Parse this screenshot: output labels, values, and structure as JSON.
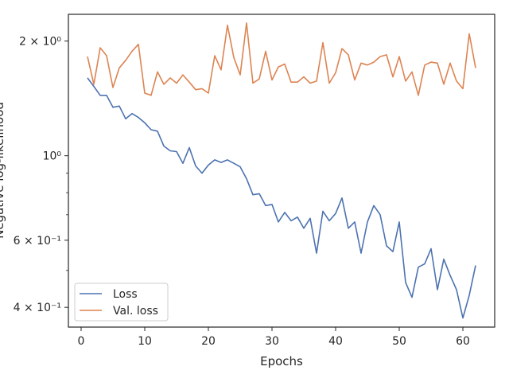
{
  "chart_data": {
    "type": "line",
    "title": "",
    "xlabel": "Epochs",
    "ylabel": "Negative log-likelihood",
    "yscale": "log",
    "xlim": [
      -2,
      65
    ],
    "ylim": [
      0.355,
      2.35
    ],
    "grid": false,
    "legend_position": "lower-left",
    "x_ticks": [
      0,
      10,
      20,
      30,
      40,
      50,
      60
    ],
    "x_tick_labels": [
      "0",
      "10",
      "20",
      "30",
      "40",
      "50",
      "60"
    ],
    "y_ticks": [
      0.4,
      0.6,
      1.0,
      2.0
    ],
    "y_tick_labels": [
      "4 × 10⁻¹",
      "6 × 10⁻¹",
      "10⁰",
      "2 × 10⁰"
    ],
    "y_minor_ticks": [
      0.5,
      0.7,
      0.8,
      0.9
    ],
    "x": [
      1,
      2,
      3,
      4,
      5,
      6,
      7,
      8,
      9,
      10,
      11,
      12,
      13,
      14,
      15,
      16,
      17,
      18,
      19,
      20,
      21,
      22,
      23,
      24,
      25,
      26,
      27,
      28,
      29,
      30,
      31,
      32,
      33,
      34,
      35,
      36,
      37,
      38,
      39,
      40,
      41,
      42,
      43,
      44,
      45,
      46,
      47,
      48,
      49,
      50,
      51,
      52,
      53,
      54,
      55,
      56,
      57,
      58,
      59,
      60,
      61,
      62
    ],
    "series": [
      {
        "name": "Loss",
        "color": "#4c72b0",
        "values": [
          1.6,
          1.52,
          1.44,
          1.44,
          1.34,
          1.35,
          1.25,
          1.29,
          1.26,
          1.22,
          1.17,
          1.16,
          1.06,
          1.03,
          1.025,
          0.955,
          1.05,
          0.94,
          0.9,
          0.945,
          0.975,
          0.96,
          0.975,
          0.955,
          0.935,
          0.87,
          0.79,
          0.795,
          0.74,
          0.745,
          0.67,
          0.71,
          0.675,
          0.69,
          0.645,
          0.685,
          0.555,
          0.715,
          0.675,
          0.705,
          0.775,
          0.645,
          0.67,
          0.555,
          0.67,
          0.74,
          0.7,
          0.58,
          0.56,
          0.67,
          0.465,
          0.425,
          0.51,
          0.52,
          0.57,
          0.445,
          0.535,
          0.485,
          0.445,
          0.375,
          0.43,
          0.515
        ]
      },
      {
        "name": "Val. loss",
        "color": "#dd8452",
        "values": [
          1.82,
          1.54,
          1.92,
          1.83,
          1.51,
          1.7,
          1.78,
          1.88,
          1.96,
          1.46,
          1.44,
          1.66,
          1.54,
          1.6,
          1.55,
          1.63,
          1.56,
          1.49,
          1.5,
          1.46,
          1.83,
          1.68,
          2.2,
          1.81,
          1.63,
          2.23,
          1.55,
          1.59,
          1.88,
          1.58,
          1.71,
          1.74,
          1.56,
          1.56,
          1.61,
          1.55,
          1.57,
          1.98,
          1.55,
          1.65,
          1.91,
          1.84,
          1.58,
          1.75,
          1.73,
          1.76,
          1.82,
          1.84,
          1.61,
          1.82,
          1.57,
          1.66,
          1.44,
          1.73,
          1.76,
          1.75,
          1.54,
          1.75,
          1.57,
          1.5,
          2.09,
          1.7
        ]
      }
    ]
  }
}
